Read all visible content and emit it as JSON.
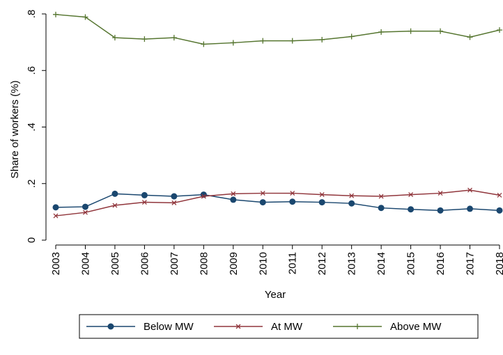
{
  "chart_data": {
    "type": "line",
    "x_label": "Year",
    "y_label": "Share of workers (%)",
    "x": [
      2003,
      2004,
      2005,
      2006,
      2007,
      2008,
      2009,
      2010,
      2011,
      2012,
      2013,
      2014,
      2015,
      2016,
      2017,
      2018
    ],
    "xlim": [
      2003,
      2018
    ],
    "xticks": [
      2003,
      2004,
      2005,
      2006,
      2007,
      2008,
      2009,
      2010,
      2011,
      2012,
      2013,
      2014,
      2015,
      2016,
      2017,
      2018
    ],
    "ylim": [
      0,
      0.8
    ],
    "yticks": [
      0,
      {
        "value": 0.2,
        "label": ".2"
      },
      {
        "value": 0.4,
        "label": ".4"
      },
      {
        "value": 0.6,
        "label": ".6"
      },
      {
        "value": 0.8,
        "label": ".8"
      }
    ],
    "grid": false,
    "legend": "bottom",
    "series": [
      {
        "name": "Below MW",
        "color": "#1a476f",
        "marker": "circle",
        "values": [
          0.116,
          0.118,
          0.164,
          0.159,
          0.155,
          0.161,
          0.143,
          0.134,
          0.136,
          0.134,
          0.13,
          0.114,
          0.109,
          0.105,
          0.111,
          0.105
        ]
      },
      {
        "name": "At MW",
        "color": "#90353b",
        "marker": "x",
        "values": [
          0.086,
          0.098,
          0.123,
          0.134,
          0.132,
          0.155,
          0.164,
          0.166,
          0.166,
          0.161,
          0.157,
          0.155,
          0.161,
          0.166,
          0.177,
          0.159
        ]
      },
      {
        "name": "Above MW",
        "color": "#55752f",
        "marker": "plus",
        "values": [
          0.798,
          0.789,
          0.716,
          0.711,
          0.716,
          0.693,
          0.698,
          0.705,
          0.705,
          0.709,
          0.72,
          0.736,
          0.739,
          0.739,
          0.718,
          0.743
        ]
      }
    ]
  }
}
